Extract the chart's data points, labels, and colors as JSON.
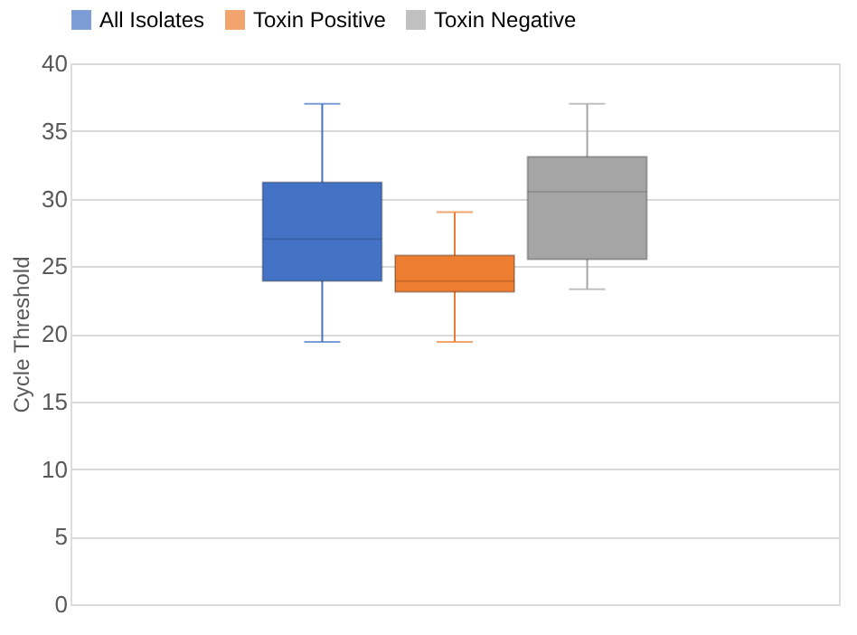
{
  "chart_data": {
    "type": "box",
    "ylabel": "Cycle Threshold",
    "categories": [
      null
    ],
    "series": [
      {
        "name": "All Isolates",
        "color": "#4472c4",
        "boxes": [
          {
            "low": 19.4,
            "q1": 23.9,
            "median": 27.0,
            "q3": 31.2,
            "high": 37.0
          }
        ]
      },
      {
        "name": "Toxin Positive",
        "color": "#ed7d31",
        "boxes": [
          {
            "low": 19.4,
            "q1": 23.1,
            "median": 23.9,
            "q3": 25.8,
            "high": 29.0
          }
        ]
      },
      {
        "name": "Toxin Negative",
        "color": "#a5a5a5",
        "boxes": [
          {
            "low": 23.3,
            "q1": 25.5,
            "median": 30.5,
            "q3": 33.1,
            "high": 37.0
          }
        ]
      }
    ],
    "ylim": [
      0,
      40
    ],
    "yticks": [
      0,
      5,
      10,
      15,
      20,
      25,
      30,
      35,
      40
    ],
    "grid": "y",
    "legend": "top"
  }
}
